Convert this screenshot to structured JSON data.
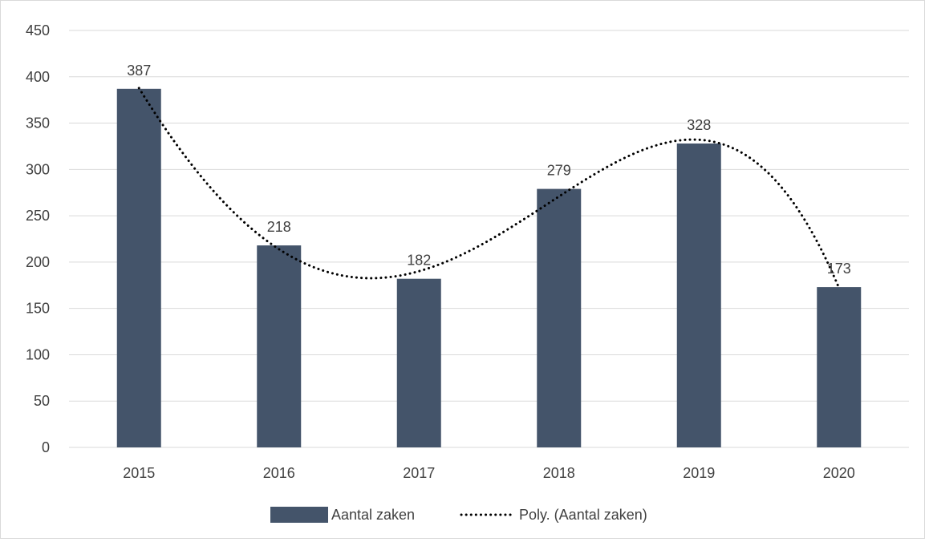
{
  "chart_data": {
    "type": "bar",
    "title": "",
    "xlabel": "",
    "ylabel": "",
    "categories": [
      "2015",
      "2016",
      "2017",
      "2018",
      "2019",
      "2020"
    ],
    "series": [
      {
        "name": "Aantal zaken",
        "values": [
          387,
          218,
          182,
          279,
          328,
          173
        ],
        "color": "#44546a",
        "data_labels": [
          "387",
          "218",
          "182",
          "279",
          "328",
          "173"
        ]
      }
    ],
    "trendline": {
      "name": "Poly. (Aantal zaken)",
      "kind": "polynomial",
      "style": "dotted",
      "color": "#000000"
    },
    "ylim": [
      0,
      450
    ],
    "yticks": [
      0,
      50,
      100,
      150,
      200,
      250,
      300,
      350,
      400,
      450
    ],
    "ytick_labels": [
      "0",
      "50",
      "100",
      "150",
      "200",
      "250",
      "300",
      "350",
      "400",
      "450"
    ],
    "grid": true,
    "gridline_color": "#d9d9d9",
    "legend_position": "bottom"
  }
}
